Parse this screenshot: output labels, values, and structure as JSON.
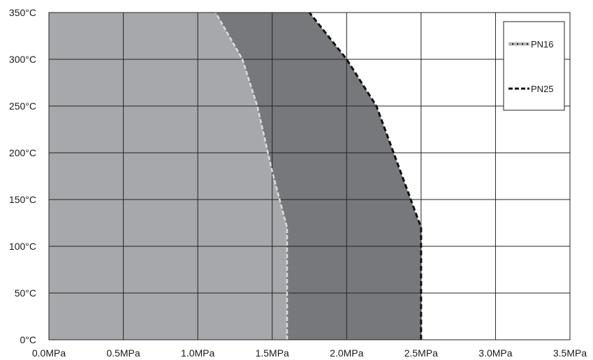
{
  "chart_data": {
    "type": "area",
    "title": "",
    "xlabel": "",
    "ylabel": "",
    "x_unit": "MPa",
    "y_unit": "°C",
    "xlim": [
      0,
      3.5
    ],
    "ylim": [
      0,
      350
    ],
    "x_ticks": [
      "0.0MPa",
      "0.5MPa",
      "1.0MPa",
      "1.5MPa",
      "2.0MPa",
      "2.5MPa",
      "3.0MPa",
      "3.5MPa"
    ],
    "y_ticks": [
      "0°C",
      "50°C",
      "100°C",
      "150°C",
      "200°C",
      "250°C",
      "300°C",
      "350°C"
    ],
    "x_tick_values": [
      0,
      0.5,
      1.0,
      1.5,
      2.0,
      2.5,
      3.0,
      3.5
    ],
    "y_tick_values": [
      0,
      50,
      100,
      150,
      200,
      250,
      300,
      350
    ],
    "grid": true,
    "legend_position": "top-right",
    "series": [
      {
        "name": "PN16",
        "fill_color": "#a7a8ab",
        "line_color": "#dcdcdc",
        "line_style": "dashed",
        "points": [
          {
            "pressure": 1.6,
            "temperature": 0
          },
          {
            "pressure": 1.6,
            "temperature": 120
          },
          {
            "pressure": 1.5,
            "temperature": 180
          },
          {
            "pressure": 1.4,
            "temperature": 250
          },
          {
            "pressure": 1.3,
            "temperature": 300
          },
          {
            "pressure": 1.12,
            "temperature": 350
          }
        ]
      },
      {
        "name": "PN25",
        "fill_color": "#77787b",
        "line_color": "#111111",
        "line_style": "dashed",
        "points": [
          {
            "pressure": 2.5,
            "temperature": 0
          },
          {
            "pressure": 2.5,
            "temperature": 120
          },
          {
            "pressure": 2.2,
            "temperature": 250
          },
          {
            "pressure": 2.0,
            "temperature": 300
          },
          {
            "pressure": 1.75,
            "temperature": 350
          }
        ]
      }
    ]
  },
  "legend": {
    "items": [
      {
        "label": "PN16"
      },
      {
        "label": "PN25"
      }
    ]
  }
}
